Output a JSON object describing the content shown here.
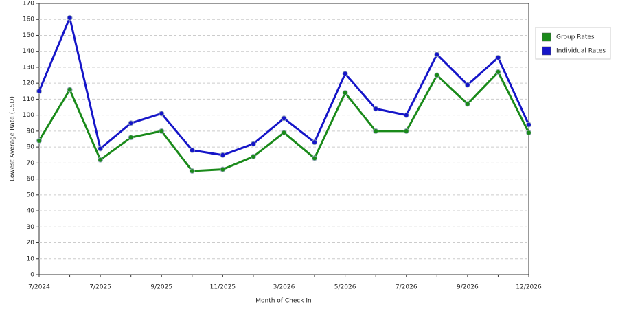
{
  "chart_data": {
    "type": "line",
    "x_label": "Month of Check In",
    "y_label": "Lowest Average Rate (USD)",
    "categories": [
      "7/2024",
      null,
      "7/2025",
      null,
      "9/2025",
      null,
      "11/2025",
      null,
      "3/2026",
      null,
      "5/2026",
      null,
      "7/2026",
      null,
      "9/2026",
      null,
      "12/2026"
    ],
    "series": [
      {
        "name": "Group Rates",
        "color": "#1a8a1a",
        "values": [
          84,
          116,
          72,
          86,
          90,
          65,
          66,
          74,
          89,
          73,
          114,
          90,
          90,
          125,
          107,
          127,
          89
        ]
      },
      {
        "name": "Individual Rates",
        "color": "#1515c8",
        "values": [
          115,
          161,
          79,
          95,
          101,
          78,
          75,
          82,
          98,
          83,
          126,
          104,
          100,
          138,
          119,
          136,
          94
        ]
      }
    ],
    "ylim": [
      0,
      170
    ],
    "yticks": [
      0,
      10,
      20,
      30,
      40,
      50,
      60,
      70,
      80,
      90,
      100,
      110,
      120,
      130,
      140,
      150,
      160,
      170
    ],
    "grid": true,
    "legend": "right"
  }
}
